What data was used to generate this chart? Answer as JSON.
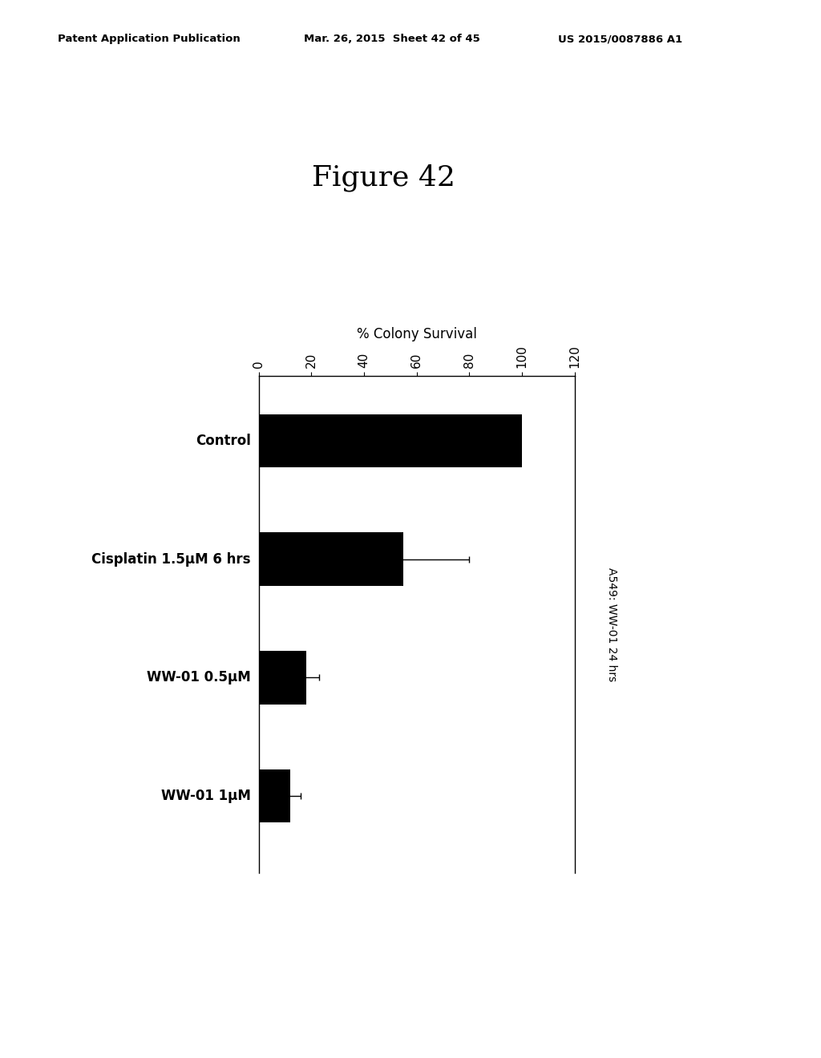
{
  "title": "Figure 42",
  "header_left": "Patent Application Publication",
  "header_mid": "Mar. 26, 2015  Sheet 42 of 45",
  "header_right": "US 2015/0087886 A1",
  "categories": [
    "Control",
    "Cisplatin 1.5μM 6 hrs",
    "WW-01 0.5μM",
    "WW-01 1μM"
  ],
  "values": [
    100,
    55,
    18,
    12
  ],
  "errors": [
    0,
    25,
    5,
    4
  ],
  "xlabel": "% Colony Survival",
  "xlim": [
    0,
    120
  ],
  "xticks": [
    0,
    20,
    40,
    60,
    80,
    100,
    120
  ],
  "ylabel_right": "A549: WW-01 24 hrs",
  "bar_color": "#000000",
  "background_color": "#ffffff",
  "bar_height": 0.45,
  "figure_title_fontsize": 26,
  "axis_label_fontsize": 12,
  "tick_label_fontsize": 11,
  "category_fontsize": 12
}
